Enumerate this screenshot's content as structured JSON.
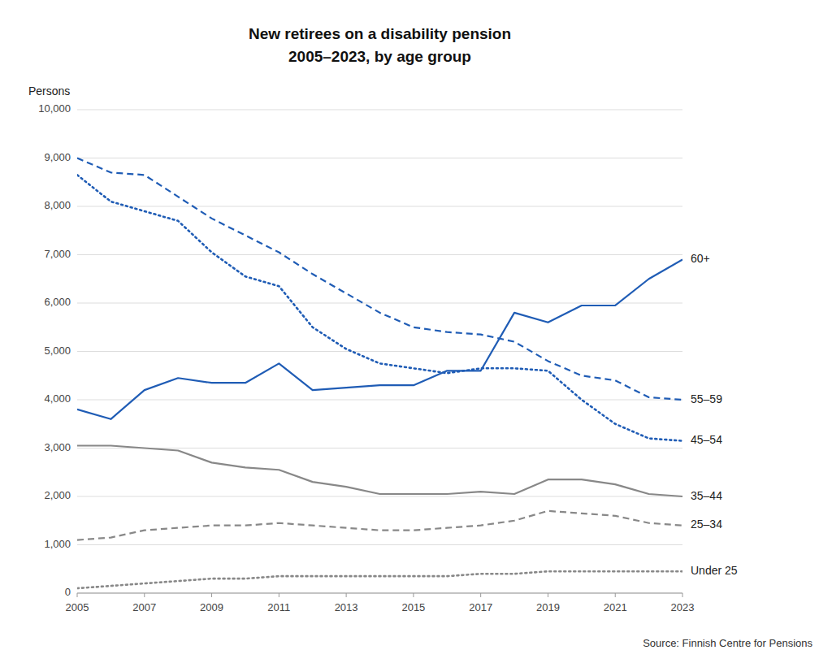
{
  "chart_data": {
    "type": "line",
    "title": "New retirees on a disability pension",
    "subtitle": "2005–2023, by age group",
    "ylabel": "Persons",
    "annotations": [
      "Source: Finnish Centre for Pensions"
    ],
    "x": [
      2005,
      2006,
      2007,
      2008,
      2009,
      2010,
      2011,
      2012,
      2013,
      2014,
      2015,
      2016,
      2017,
      2018,
      2019,
      2020,
      2021,
      2022,
      2023
    ],
    "series": [
      {
        "name": "55–59",
        "color": "#1F5CB5",
        "line_style": "dashed",
        "values": [
          9000,
          8700,
          8650,
          8200,
          7750,
          7400,
          7050,
          6600,
          6200,
          5800,
          5500,
          5400,
          5350,
          5200,
          4800,
          4500,
          4400,
          4050,
          4000
        ]
      },
      {
        "name": "45–54",
        "color": "#1F5CB5",
        "line_style": "dotted",
        "values": [
          8650,
          8100,
          7900,
          7700,
          7050,
          6550,
          6350,
          5500,
          5050,
          4750,
          4650,
          4550,
          4650,
          4650,
          4600,
          4000,
          3500,
          3200,
          3150
        ]
      },
      {
        "name": "35–44",
        "color": "#888888",
        "line_style": "solid",
        "values": [
          3050,
          3050,
          3000,
          2950,
          2700,
          2600,
          2550,
          2300,
          2200,
          2050,
          2050,
          2050,
          2100,
          2050,
          2350,
          2350,
          2250,
          2050,
          2000
        ]
      },
      {
        "name": "25–34",
        "color": "#888888",
        "line_style": "dashed",
        "values": [
          1100,
          1150,
          1300,
          1350,
          1400,
          1400,
          1450,
          1400,
          1350,
          1300,
          1300,
          1350,
          1400,
          1500,
          1700,
          1650,
          1600,
          1450,
          1400
        ]
      },
      {
        "name": "Under 25",
        "color": "#888888",
        "line_style": "dotted",
        "values": [
          100,
          150,
          200,
          250,
          300,
          300,
          350,
          350,
          350,
          350,
          350,
          350,
          400,
          400,
          450,
          450,
          450,
          450,
          450
        ]
      },
      {
        "name": "60+",
        "color": "#1F5CB5",
        "line_style": "solid",
        "values": [
          3800,
          3600,
          4200,
          4450,
          4350,
          4350,
          4750,
          4200,
          4250,
          4300,
          4300,
          4600,
          4600,
          5800,
          5600,
          5950,
          5950,
          6500,
          6900
        ]
      }
    ],
    "xlim": [
      2005,
      2023
    ],
    "xticks": [
      2005,
      2007,
      2009,
      2011,
      2013,
      2015,
      2017,
      2019,
      2021,
      2023
    ],
    "ylim": [
      0,
      10000
    ],
    "yticks": [
      0,
      {
        "value": 1000,
        "label": "1,000"
      },
      {
        "value": 2000,
        "label": "2,000"
      },
      {
        "value": 3000,
        "label": "3,000"
      },
      {
        "value": 4000,
        "label": "4,000"
      },
      {
        "value": 5000,
        "label": "5,000"
      },
      {
        "value": 6000,
        "label": "6,000"
      },
      {
        "value": 7000,
        "label": "7,000"
      },
      {
        "value": 8000,
        "label": "8,000"
      },
      {
        "value": 9000,
        "label": "9,000"
      },
      {
        "value": 10000,
        "label": "10,000"
      }
    ],
    "grid": true
  }
}
